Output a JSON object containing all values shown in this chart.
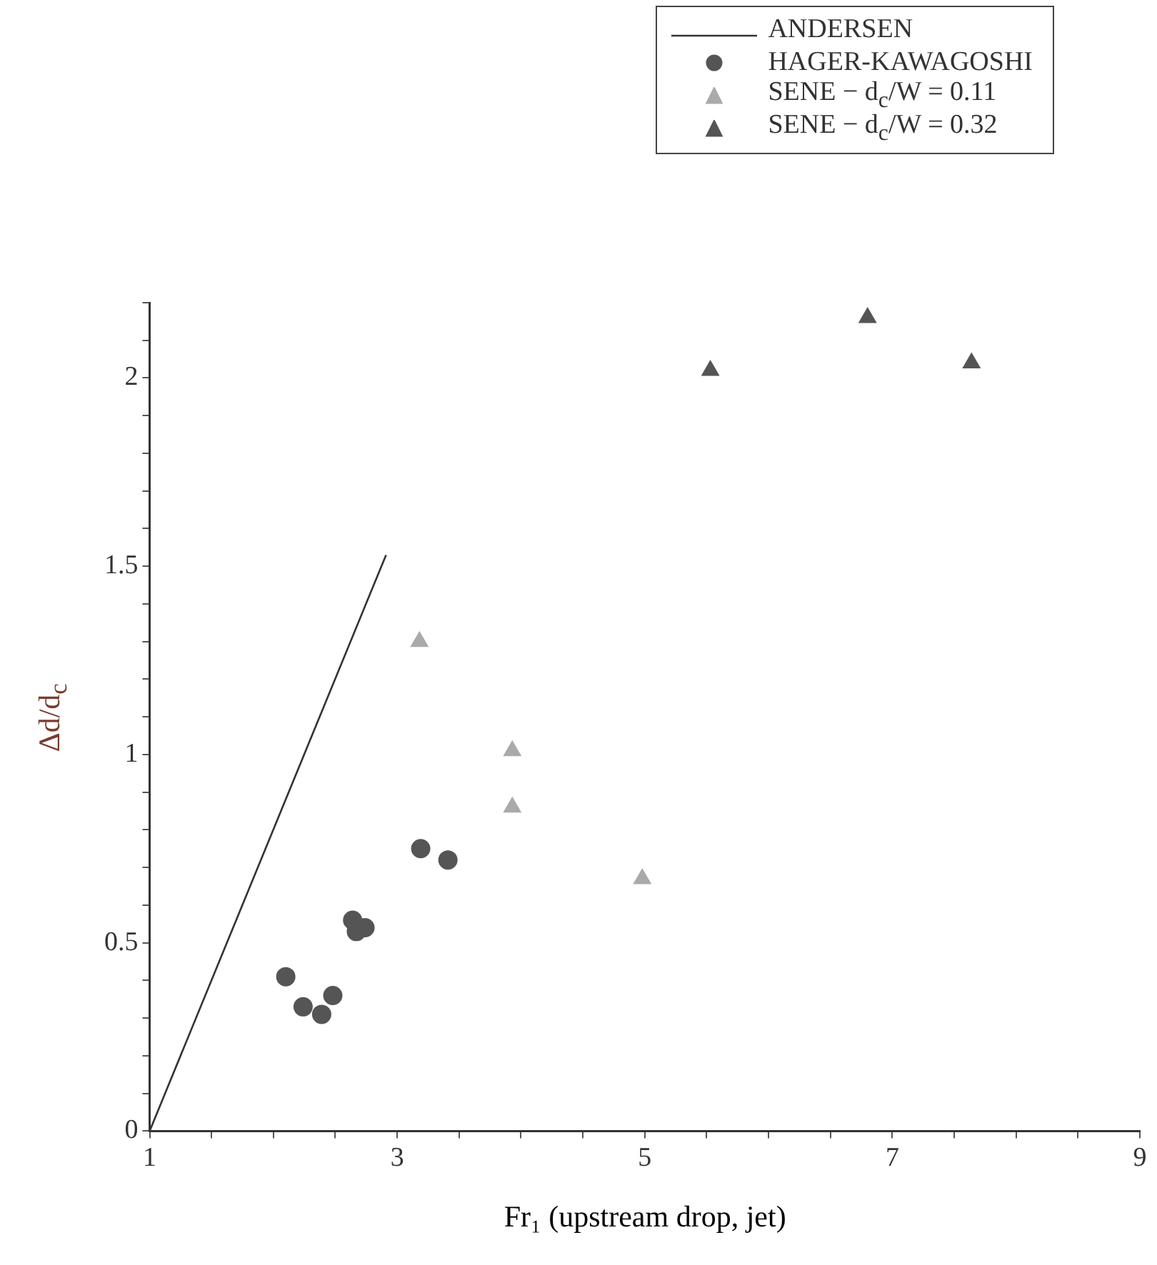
{
  "chart_data": {
    "type": "scatter",
    "xlabel": "Fr₁ (upstream drop, jet)",
    "ylabel": "Δd/d$_{c}$",
    "xlim": [
      1,
      9
    ],
    "ylim": [
      0,
      2.2
    ],
    "xticks": [
      1,
      {
        "value": 1.5,
        "label": null
      },
      {
        "value": 2,
        "label": null
      },
      {
        "value": 2.5,
        "label": null
      },
      3,
      {
        "value": 3.5,
        "label": null
      },
      {
        "value": 4,
        "label": null
      },
      {
        "value": 4.5,
        "label": null
      },
      5,
      {
        "value": 5.5,
        "label": null
      },
      {
        "value": 6,
        "label": null
      },
      {
        "value": 6.5,
        "label": null
      },
      7,
      {
        "value": 7.5,
        "label": null
      },
      {
        "value": 8,
        "label": null
      },
      {
        "value": 8.5,
        "label": null
      },
      9
    ],
    "yticks": [
      0,
      {
        "value": 0.1,
        "label": null
      },
      {
        "value": 0.2,
        "label": null
      },
      {
        "value": 0.3,
        "label": null
      },
      {
        "value": 0.4,
        "label": null
      },
      0.5,
      {
        "value": 0.6,
        "label": null
      },
      {
        "value": 0.7,
        "label": null
      },
      {
        "value": 0.8,
        "label": null
      },
      {
        "value": 0.9,
        "label": null
      },
      1,
      {
        "value": 1.1,
        "label": null
      },
      {
        "value": 1.2,
        "label": null
      },
      {
        "value": 1.3,
        "label": null
      },
      {
        "value": 1.4,
        "label": null
      },
      1.5,
      {
        "value": 1.6,
        "label": null
      },
      {
        "value": 1.7,
        "label": null
      },
      {
        "value": 1.8,
        "label": null
      },
      {
        "value": 1.9,
        "label": null
      },
      2,
      {
        "value": 2.1,
        "label": null
      },
      {
        "value": 2.2,
        "label": null
      }
    ],
    "grid": false,
    "legend": "top right",
    "series": [
      {
        "name": "ANDERSEN",
        "type": "line",
        "marker": "none",
        "line_style": "solid",
        "color": "#333333",
        "x": [
          1,
          2.91
        ],
        "values": [
          0,
          1.53
        ]
      },
      {
        "name": "HAGER-KAWAGOSHI",
        "marker": "circle",
        "color": "#555555",
        "x": [
          2.1,
          2.24,
          2.39,
          2.48,
          2.64,
          2.67,
          2.74,
          3.19,
          3.41
        ],
        "values": [
          0.41,
          0.33,
          0.31,
          0.36,
          0.56,
          0.53,
          0.54,
          0.75,
          0.72
        ]
      },
      {
        "name": "SENE − d$_{c}$/W = 0.11",
        "marker": "triangle",
        "color": "#aaaaaa",
        "x": [
          3.18,
          3.93,
          3.93,
          4.98
        ],
        "values": [
          1.3,
          1.01,
          0.86,
          0.67
        ]
      },
      {
        "name": "SENE − d$_{c}$/W = 0.32",
        "marker": "triangle",
        "color": "#555555",
        "x": [
          5.53,
          6.8,
          7.64
        ],
        "values": [
          2.02,
          2.16,
          2.04
        ]
      }
    ]
  }
}
